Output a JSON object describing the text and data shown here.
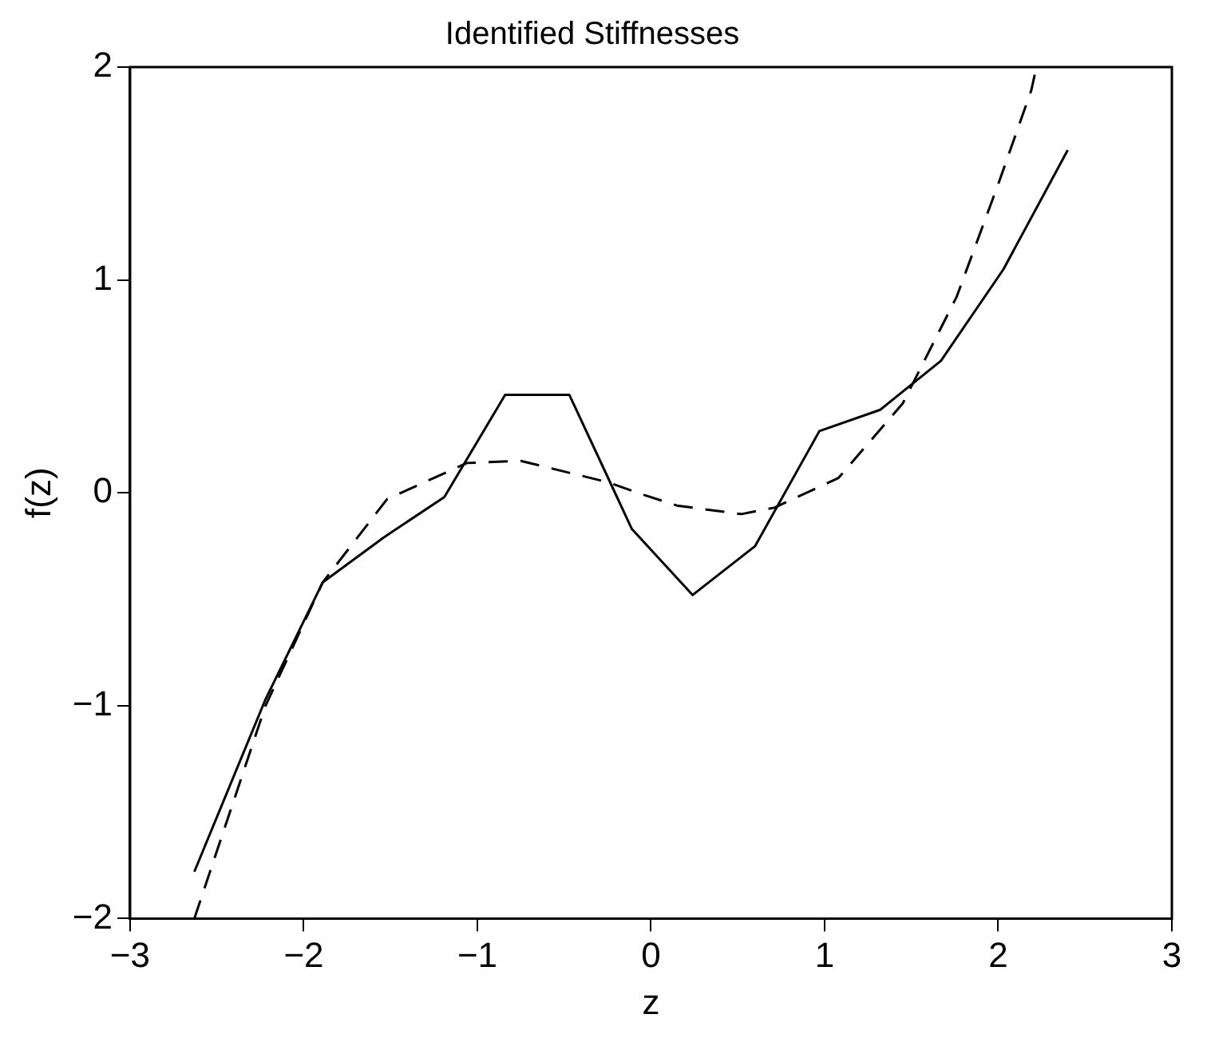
{
  "chart_data": {
    "type": "line",
    "title": "Identified Stiffnesses",
    "xlabel": "z",
    "ylabel": "f(z)",
    "xlim": [
      -3,
      3
    ],
    "xticks": [
      -3,
      -2,
      -1,
      0,
      1,
      2,
      3
    ],
    "ylim": [
      -2,
      2
    ],
    "yticks": [
      -2,
      -1,
      0,
      1,
      2
    ],
    "grid": false,
    "legend": false,
    "marker": "none",
    "series": [
      {
        "color": "#000000",
        "line_style": "solid",
        "x": [
          -2.63,
          -2.22,
          -1.89,
          -1.54,
          -1.19,
          -0.84,
          -0.47,
          -0.11,
          0.24,
          0.6,
          0.97,
          1.32,
          1.67,
          2.03,
          2.4
        ],
        "values": [
          -1.78,
          -0.97,
          -0.42,
          -0.21,
          -0.02,
          0.46,
          0.46,
          -0.17,
          -0.48,
          -0.25,
          0.29,
          0.39,
          0.62,
          1.05,
          1.61
        ]
      },
      {
        "color": "#000000",
        "line_style": "dashed",
        "x": [
          -2.63,
          -2.22,
          -1.89,
          -1.52,
          -1.06,
          -0.75,
          -0.25,
          -0.04,
          0.15,
          0.52,
          0.71,
          1.08,
          1.45,
          1.76,
          2.0,
          2.19,
          2.22
        ],
        "values": [
          -2.0,
          -1.0,
          -0.42,
          -0.03,
          0.14,
          0.15,
          0.05,
          -0.01,
          -0.06,
          -0.1,
          -0.07,
          0.07,
          0.42,
          0.92,
          1.45,
          1.89,
          2.0
        ]
      }
    ]
  }
}
